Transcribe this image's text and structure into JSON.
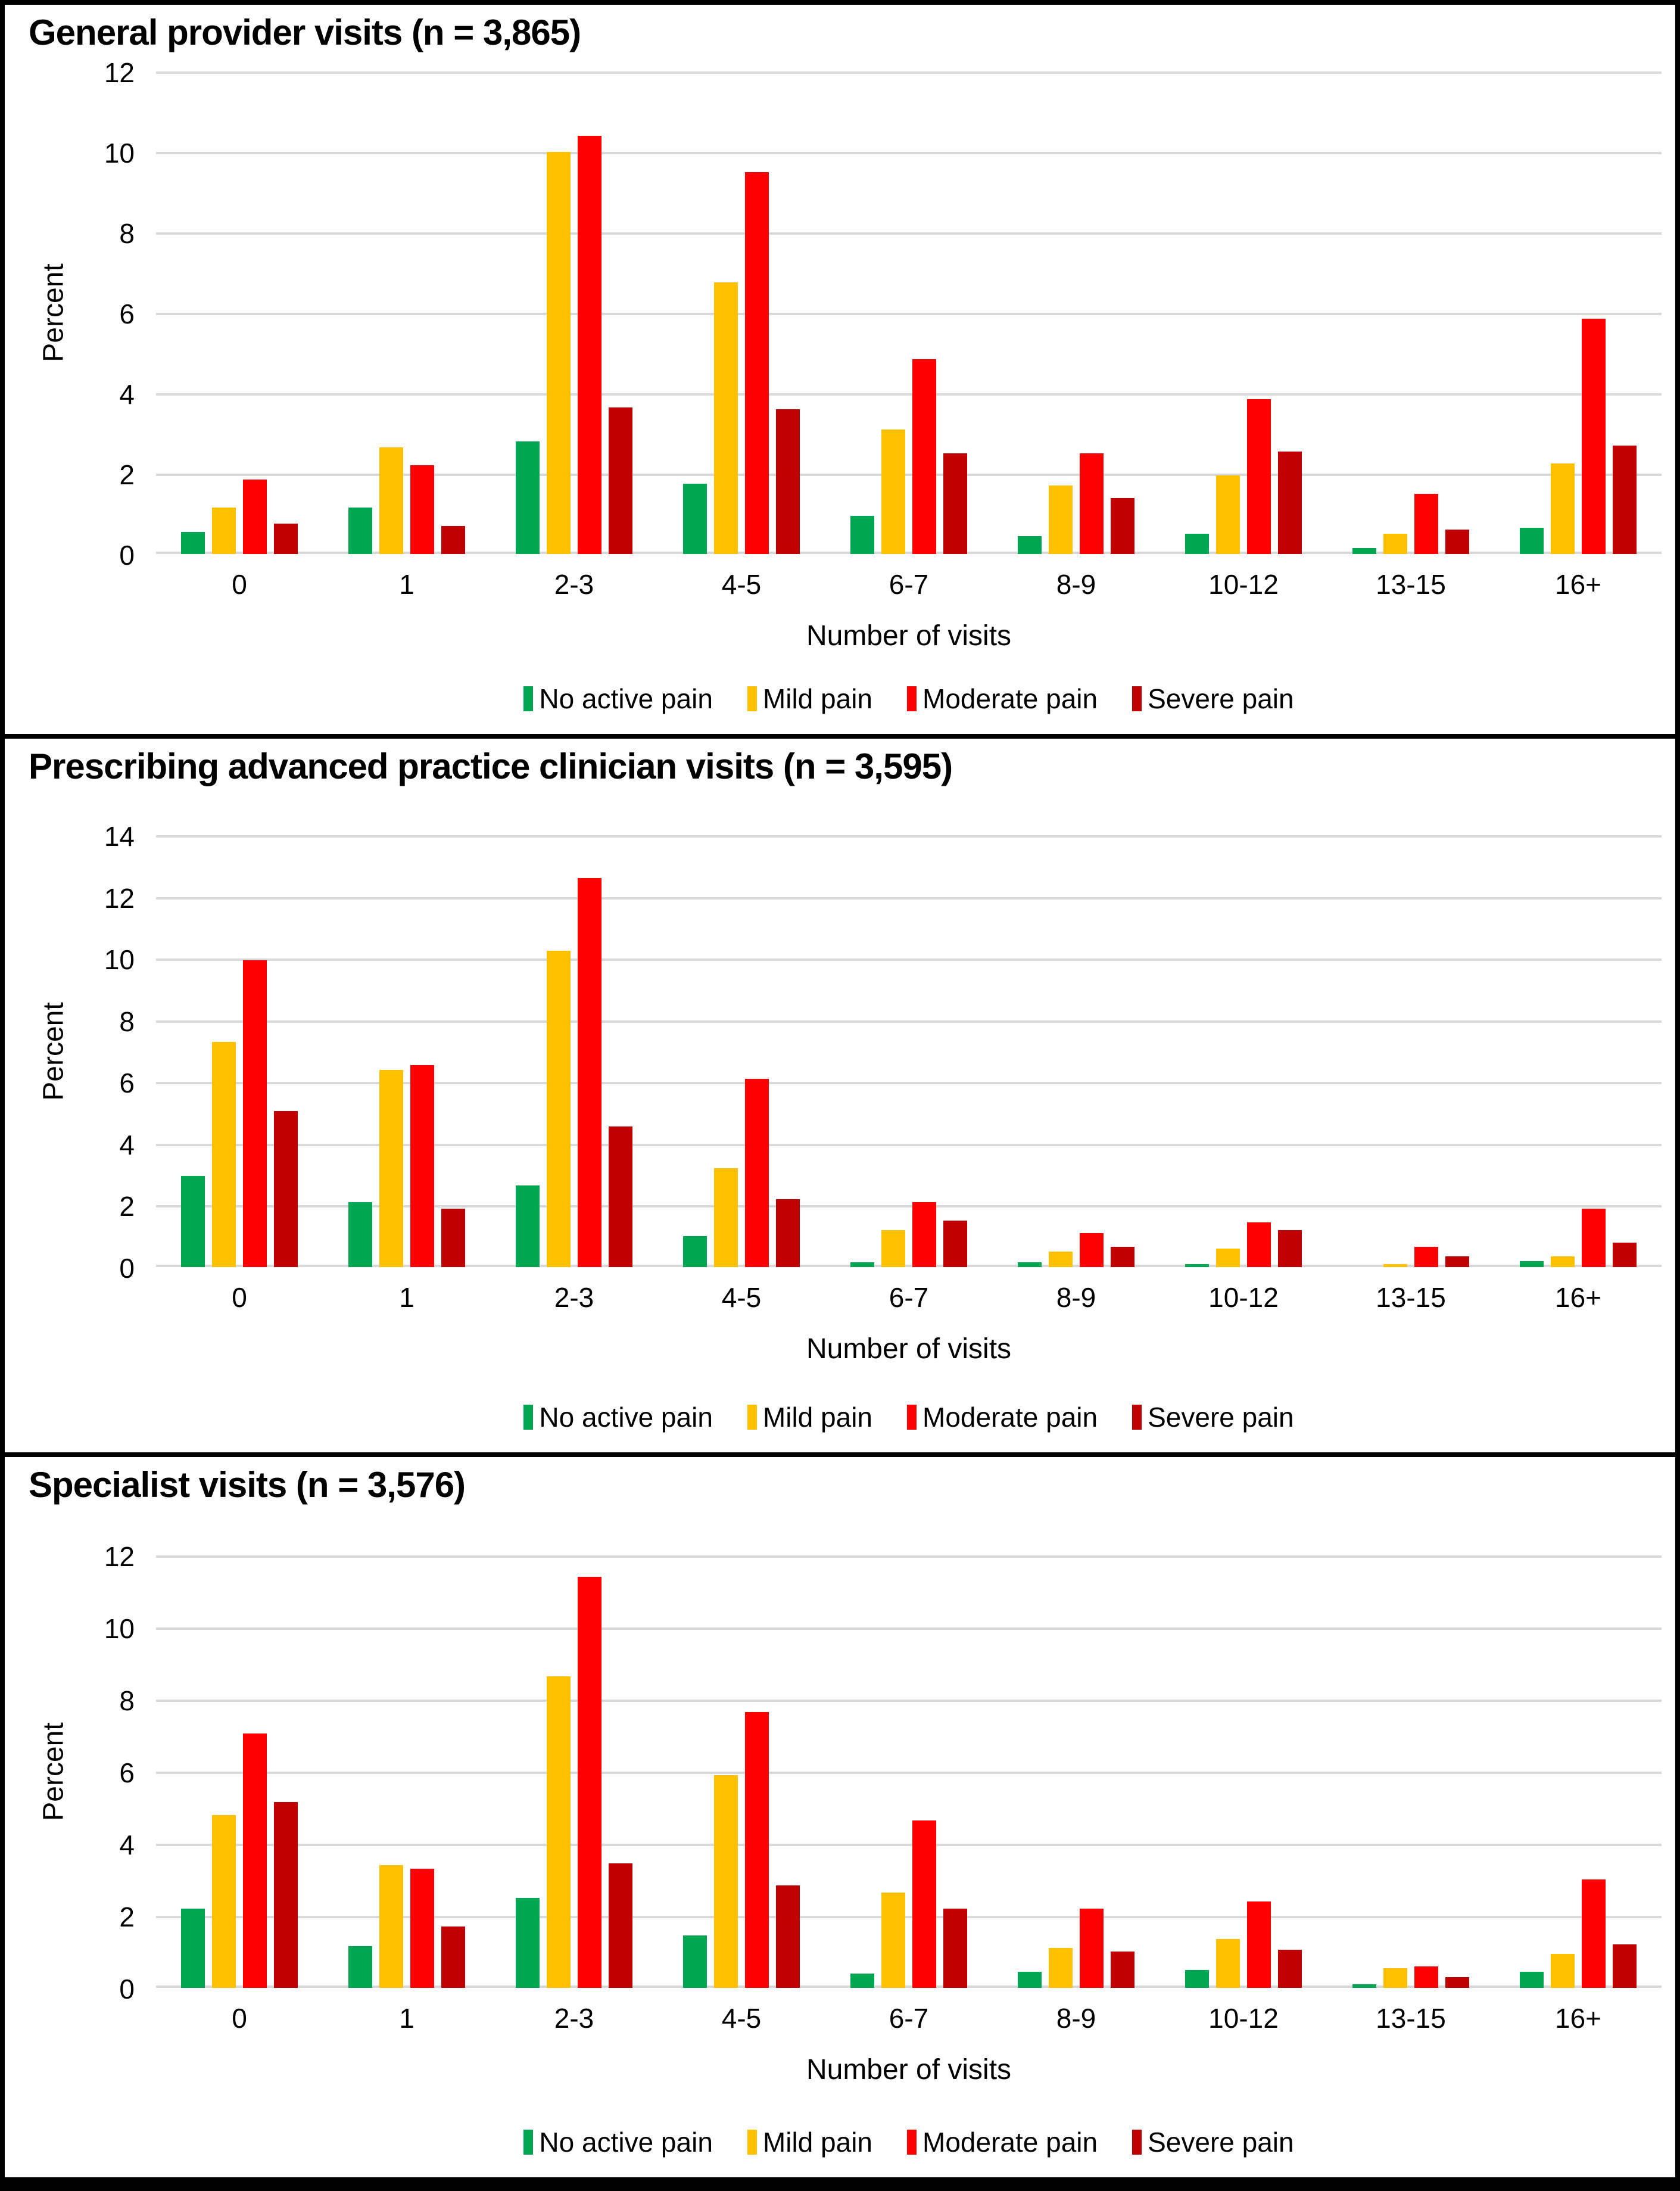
{
  "figure": {
    "ylabel": "Percent",
    "xlabel": "Number of visits",
    "frame_color": "#000000",
    "panel_background": "#FFFFFF",
    "gridline_color": "#D9D9D9"
  },
  "chart_data": [
    {
      "type": "bar",
      "title": "General provider visits (n = 3,865)",
      "ylabel": "Percent",
      "xlabel": "Number of visits",
      "ylim": [
        0,
        12
      ],
      "yticks": [
        12,
        10,
        8,
        6,
        4,
        2,
        0
      ],
      "grid": true,
      "legend_position": "bottom",
      "categories": [
        "0",
        "1",
        "2-3",
        "4-5",
        "6-7",
        "8-9",
        "10-12",
        "13-15",
        "16+"
      ],
      "series": [
        {
          "name": "No active pain",
          "color": "#00A651",
          "values": [
            0.55,
            1.15,
            2.8,
            1.75,
            0.95,
            0.45,
            0.5,
            0.15,
            0.65
          ]
        },
        {
          "name": "Mild pain",
          "color": "#FFC000",
          "values": [
            1.15,
            2.65,
            10.0,
            6.75,
            3.1,
            1.7,
            1.95,
            0.5,
            2.25
          ]
        },
        {
          "name": "Moderate pain",
          "color": "#FF0000",
          "values": [
            1.85,
            2.2,
            10.4,
            9.5,
            4.85,
            2.5,
            3.85,
            1.5,
            5.85
          ]
        },
        {
          "name": "Severe pain",
          "color": "#C00000",
          "values": [
            0.75,
            0.7,
            3.65,
            3.6,
            2.5,
            1.4,
            2.55,
            0.6,
            2.7
          ]
        }
      ]
    },
    {
      "type": "bar",
      "title": "Prescribing advanced practice clinician visits (n = 3,595)",
      "ylabel": "Percent",
      "xlabel": "Number of visits",
      "ylim": [
        0,
        14
      ],
      "yticks": [
        14,
        12,
        10,
        8,
        6,
        4,
        2,
        0
      ],
      "grid": true,
      "legend_position": "bottom",
      "categories": [
        "0",
        "1",
        "2-3",
        "4-5",
        "6-7",
        "8-9",
        "10-12",
        "13-15",
        "16+"
      ],
      "series": [
        {
          "name": "No active pain",
          "color": "#00A651",
          "values": [
            2.95,
            2.1,
            2.65,
            1.0,
            0.15,
            0.15,
            0.1,
            0,
            0.2
          ]
        },
        {
          "name": "Mild pain",
          "color": "#FFC000",
          "values": [
            7.3,
            6.4,
            10.25,
            3.2,
            1.2,
            0.5,
            0.6,
            0.1,
            0.35
          ]
        },
        {
          "name": "Moderate pain",
          "color": "#FF0000",
          "values": [
            9.95,
            6.55,
            12.6,
            6.1,
            2.1,
            1.1,
            1.45,
            0.65,
            1.9
          ]
        },
        {
          "name": "Severe pain",
          "color": "#C00000",
          "values": [
            5.05,
            1.9,
            4.55,
            2.2,
            1.5,
            0.65,
            1.2,
            0.35,
            0.8
          ]
        }
      ]
    },
    {
      "type": "bar",
      "title": "Specialist visits (n = 3,576)",
      "ylabel": "Percent",
      "xlabel": "Number of visits",
      "ylim": [
        0,
        12
      ],
      "yticks": [
        12,
        10,
        8,
        6,
        4,
        2,
        0
      ],
      "grid": true,
      "legend_position": "bottom",
      "categories": [
        "0",
        "1",
        "2-3",
        "4-5",
        "6-7",
        "8-9",
        "10-12",
        "13-15",
        "16+"
      ],
      "series": [
        {
          "name": "No active pain",
          "color": "#00A651",
          "values": [
            2.2,
            1.15,
            2.5,
            1.45,
            0.4,
            0.45,
            0.5,
            0.1,
            0.45
          ]
        },
        {
          "name": "Mild pain",
          "color": "#FFC000",
          "values": [
            4.8,
            3.4,
            8.65,
            5.9,
            2.65,
            1.1,
            1.35,
            0.55,
            0.95
          ]
        },
        {
          "name": "Moderate pain",
          "color": "#FF0000",
          "values": [
            7.05,
            3.3,
            11.4,
            7.65,
            4.65,
            2.2,
            2.4,
            0.6,
            3.0
          ]
        },
        {
          "name": "Severe pain",
          "color": "#C00000",
          "values": [
            5.15,
            1.7,
            3.45,
            2.85,
            2.2,
            1.0,
            1.05,
            0.3,
            1.2
          ]
        }
      ]
    }
  ]
}
